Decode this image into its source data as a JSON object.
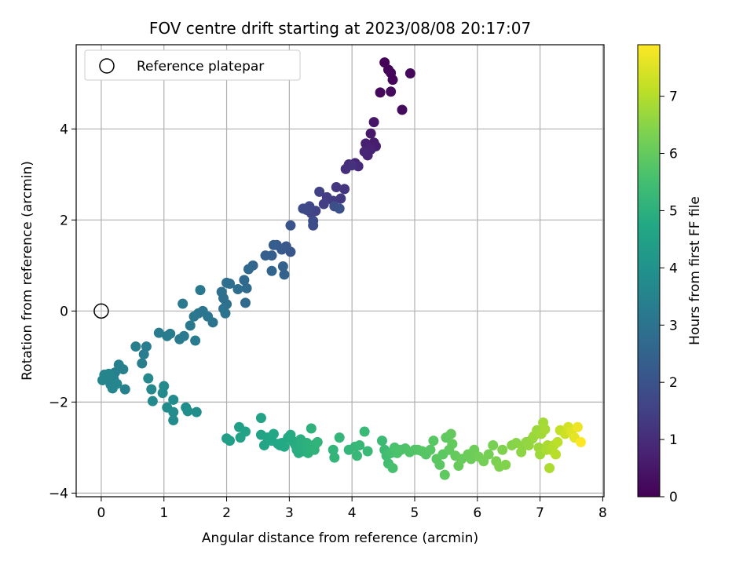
{
  "chart_data": {
    "type": "scatter",
    "title": "FOV centre drift starting at 2023/08/08 20:17:07",
    "xlabel": "Angular distance from reference (arcmin)",
    "ylabel": "Rotation from reference (arcmin)",
    "xlim": [
      -0.4,
      8.02
    ],
    "ylim": [
      -4.08,
      5.85
    ],
    "xticks": [
      0,
      1,
      2,
      3,
      4,
      5,
      6,
      7,
      8
    ],
    "yticks": [
      -4,
      -2,
      0,
      2,
      4
    ],
    "xtick_labels": [
      "0",
      "1",
      "2",
      "3",
      "4",
      "5",
      "6",
      "7",
      "8"
    ],
    "ytick_labels": [
      "−4",
      "−2",
      "0",
      "2",
      "4"
    ],
    "grid": true,
    "legend": {
      "placement": "top-left",
      "entries": [
        "Reference platepar"
      ]
    },
    "reference_point": {
      "x": 0,
      "y": 0
    },
    "colorbar": {
      "label": "Hours from first FF file",
      "colormap": "viridis",
      "range": [
        0,
        7.9
      ],
      "ticks": [
        0,
        1,
        2,
        3,
        4,
        5,
        6,
        7
      ],
      "tick_labels": [
        "0",
        "1",
        "2",
        "3",
        "4",
        "5",
        "6",
        "7"
      ]
    },
    "points": [
      [
        4.52,
        5.46,
        0.05
      ],
      [
        4.58,
        5.3,
        0.08
      ],
      [
        4.62,
        5.23,
        0.1
      ],
      [
        4.65,
        5.08,
        0.12
      ],
      [
        4.93,
        5.22,
        0.15
      ],
      [
        4.45,
        4.8,
        0.18
      ],
      [
        4.62,
        4.82,
        0.2
      ],
      [
        4.8,
        4.42,
        0.25
      ],
      [
        4.35,
        4.15,
        0.45
      ],
      [
        4.3,
        3.9,
        0.55
      ],
      [
        4.35,
        3.7,
        0.6
      ],
      [
        4.38,
        3.62,
        0.65
      ],
      [
        4.22,
        3.68,
        0.7
      ],
      [
        4.3,
        3.55,
        0.75
      ],
      [
        4.25,
        3.42,
        0.8
      ],
      [
        4.2,
        3.5,
        0.85
      ],
      [
        4.05,
        3.25,
        0.9
      ],
      [
        4.1,
        3.18,
        0.95
      ],
      [
        3.95,
        3.22,
        1.0
      ],
      [
        3.9,
        3.12,
        1.05
      ],
      [
        4.0,
        3.2,
        1.1
      ],
      [
        3.88,
        2.68,
        1.2
      ],
      [
        3.75,
        2.72,
        1.25
      ],
      [
        3.82,
        2.47,
        1.3
      ],
      [
        3.7,
        2.42,
        1.35
      ],
      [
        3.6,
        2.5,
        1.4
      ],
      [
        3.55,
        2.35,
        1.45
      ],
      [
        3.48,
        2.62,
        1.5
      ],
      [
        3.42,
        2.2,
        1.55
      ],
      [
        3.35,
        2.15,
        1.6
      ],
      [
        3.32,
        2.3,
        1.65
      ],
      [
        3.28,
        2.22,
        1.7
      ],
      [
        3.22,
        2.25,
        1.75
      ],
      [
        3.38,
        1.98,
        1.8
      ],
      [
        3.38,
        1.88,
        1.85
      ],
      [
        3.72,
        2.3,
        1.9
      ],
      [
        3.8,
        2.25,
        1.95
      ],
      [
        3.02,
        1.88,
        2.05
      ],
      [
        3.02,
        1.3,
        2.1
      ],
      [
        2.95,
        1.42,
        2.15
      ],
      [
        2.88,
        1.35,
        2.2
      ],
      [
        2.8,
        1.45,
        2.25
      ],
      [
        2.75,
        1.45,
        2.3
      ],
      [
        2.72,
        1.22,
        2.35
      ],
      [
        2.62,
        1.22,
        2.4
      ],
      [
        2.9,
        0.98,
        2.45
      ],
      [
        2.92,
        0.8,
        2.5
      ],
      [
        2.72,
        0.88,
        2.55
      ],
      [
        2.42,
        1.0,
        2.6
      ],
      [
        2.35,
        0.92,
        2.65
      ],
      [
        2.28,
        0.68,
        2.7
      ],
      [
        2.3,
        0.18,
        2.72
      ],
      [
        2.32,
        0.5,
        2.75
      ],
      [
        2.18,
        0.48,
        2.8
      ],
      [
        2.05,
        0.6,
        2.85
      ],
      [
        2.0,
        0.62,
        2.88
      ],
      [
        1.92,
        0.42,
        2.9
      ],
      [
        1.95,
        0.28,
        2.92
      ],
      [
        2.0,
        0.15,
        2.95
      ],
      [
        1.95,
        0.05,
        2.98
      ],
      [
        1.98,
        -0.05,
        3.0
      ],
      [
        1.78,
        -0.25,
        3.02
      ],
      [
        1.7,
        -0.12,
        3.05
      ],
      [
        1.62,
        0.0,
        3.08
      ],
      [
        1.55,
        -0.05,
        3.1
      ],
      [
        1.48,
        -0.12,
        3.12
      ],
      [
        1.42,
        -0.32,
        3.15
      ],
      [
        1.58,
        0.46,
        3.16
      ],
      [
        1.3,
        0.16,
        3.18
      ],
      [
        1.32,
        -0.55,
        3.2
      ],
      [
        1.25,
        -0.62,
        3.22
      ],
      [
        1.5,
        -0.65,
        3.24
      ],
      [
        1.1,
        -0.5,
        3.26
      ],
      [
        1.05,
        -0.55,
        3.28
      ],
      [
        0.92,
        -0.48,
        3.3
      ],
      [
        0.72,
        -0.78,
        3.32
      ],
      [
        0.68,
        -0.95,
        3.34
      ],
      [
        0.65,
        -1.15,
        3.36
      ],
      [
        0.55,
        -0.78,
        3.38
      ],
      [
        0.28,
        -1.18,
        3.4
      ],
      [
        0.22,
        -1.35,
        3.42
      ],
      [
        0.35,
        -1.28,
        3.44
      ],
      [
        0.38,
        -1.72,
        3.46
      ],
      [
        0.2,
        -1.5,
        3.48
      ],
      [
        0.15,
        -1.62,
        3.5
      ],
      [
        0.1,
        -1.45,
        3.52
      ],
      [
        0.05,
        -1.4,
        3.54
      ],
      [
        0.02,
        -1.52,
        3.56
      ],
      [
        0.12,
        -1.38,
        3.58
      ],
      [
        0.18,
        -1.7,
        3.6
      ],
      [
        0.25,
        -1.6,
        3.62
      ],
      [
        0.75,
        -1.48,
        3.66
      ],
      [
        0.8,
        -1.72,
        3.68
      ],
      [
        0.82,
        -1.98,
        3.7
      ],
      [
        1.0,
        -1.65,
        3.72
      ],
      [
        0.98,
        -1.8,
        3.74
      ],
      [
        1.05,
        -2.12,
        3.76
      ],
      [
        1.15,
        -1.95,
        3.78
      ],
      [
        1.15,
        -2.22,
        3.8
      ],
      [
        1.15,
        -2.4,
        3.82
      ],
      [
        1.35,
        -2.12,
        3.84
      ],
      [
        1.52,
        -2.22,
        3.86
      ],
      [
        1.38,
        -2.2,
        3.88
      ],
      [
        2.0,
        -2.8,
        4.4
      ],
      [
        2.05,
        -2.85,
        4.45
      ],
      [
        2.2,
        -2.55,
        4.48
      ],
      [
        2.22,
        -2.78,
        4.5
      ],
      [
        2.3,
        -2.65,
        4.52
      ],
      [
        2.55,
        -2.35,
        4.55
      ],
      [
        2.55,
        -2.72,
        4.58
      ],
      [
        2.6,
        -2.95,
        4.6
      ],
      [
        2.65,
        -2.78,
        4.62
      ],
      [
        2.68,
        -2.8,
        4.64
      ],
      [
        2.72,
        -2.85,
        4.66
      ],
      [
        2.75,
        -2.7,
        4.68
      ],
      [
        2.82,
        -2.92,
        4.7
      ],
      [
        2.85,
        -2.95,
        4.72
      ],
      [
        2.88,
        -2.9,
        4.74
      ],
      [
        2.92,
        -2.98,
        4.76
      ],
      [
        2.98,
        -2.78,
        4.78
      ],
      [
        3.02,
        -2.72,
        4.8
      ],
      [
        3.05,
        -2.85,
        4.82
      ],
      [
        3.08,
        -2.9,
        4.84
      ],
      [
        3.1,
        -2.95,
        4.86
      ],
      [
        3.12,
        -3.05,
        4.88
      ],
      [
        3.15,
        -3.12,
        4.9
      ],
      [
        3.18,
        -2.82,
        4.92
      ],
      [
        3.2,
        -2.95,
        4.94
      ],
      [
        3.22,
        -3.08,
        4.96
      ],
      [
        3.25,
        -3.0,
        4.98
      ],
      [
        3.28,
        -2.9,
        5.0
      ],
      [
        3.3,
        -3.12,
        5.02
      ],
      [
        3.35,
        -2.98,
        5.04
      ],
      [
        3.35,
        -2.58,
        5.06
      ],
      [
        3.4,
        -3.05,
        5.08
      ],
      [
        3.42,
        -2.92,
        5.1
      ],
      [
        3.45,
        -2.88,
        5.12
      ],
      [
        3.7,
        -3.05,
        5.14
      ],
      [
        3.72,
        -3.22,
        5.16
      ],
      [
        3.8,
        -2.78,
        5.18
      ],
      [
        3.95,
        -3.05,
        5.2
      ],
      [
        4.05,
        -2.98,
        5.22
      ],
      [
        4.08,
        -3.18,
        5.24
      ],
      [
        4.12,
        -2.95,
        5.26
      ],
      [
        4.2,
        -2.65,
        5.28
      ],
      [
        4.25,
        -3.08,
        5.3
      ],
      [
        4.48,
        -2.85,
        5.35
      ],
      [
        4.52,
        -3.05,
        5.4
      ],
      [
        4.55,
        -3.18,
        5.45
      ],
      [
        4.58,
        -3.35,
        5.5
      ],
      [
        4.62,
        -3.12,
        5.55
      ],
      [
        4.65,
        -3.45,
        5.58
      ],
      [
        4.68,
        -3.0,
        5.6
      ],
      [
        4.72,
        -3.12,
        5.62
      ],
      [
        4.78,
        -3.05,
        5.65
      ],
      [
        4.85,
        -3.02,
        5.68
      ],
      [
        4.92,
        -3.1,
        5.7
      ],
      [
        5.0,
        -3.05,
        5.72
      ],
      [
        5.05,
        -3.05,
        5.75
      ],
      [
        5.12,
        -3.08,
        5.78
      ],
      [
        5.18,
        -3.15,
        5.8
      ],
      [
        5.25,
        -3.05,
        5.82
      ],
      [
        5.3,
        -2.85,
        5.84
      ],
      [
        5.35,
        -3.25,
        5.86
      ],
      [
        5.4,
        -3.38,
        5.88
      ],
      [
        5.45,
        -3.15,
        5.9
      ],
      [
        5.48,
        -3.6,
        5.92
      ],
      [
        5.5,
        -2.78,
        5.94
      ],
      [
        5.55,
        -3.05,
        5.96
      ],
      [
        5.58,
        -2.7,
        5.98
      ],
      [
        5.6,
        -2.92,
        6.0
      ],
      [
        5.65,
        -3.18,
        6.02
      ],
      [
        5.7,
        -3.4,
        6.04
      ],
      [
        5.75,
        -3.25,
        6.06
      ],
      [
        5.85,
        -3.15,
        6.1
      ],
      [
        5.9,
        -3.25,
        6.12
      ],
      [
        5.95,
        -3.05,
        6.15
      ],
      [
        6.02,
        -3.2,
        6.2
      ],
      [
        6.1,
        -3.3,
        6.22
      ],
      [
        6.18,
        -3.15,
        6.25
      ],
      [
        6.25,
        -2.95,
        6.28
      ],
      [
        6.3,
        -3.3,
        6.32
      ],
      [
        6.35,
        -3.42,
        6.35
      ],
      [
        6.4,
        -3.05,
        6.38
      ],
      [
        6.45,
        -3.38,
        6.4
      ],
      [
        6.55,
        -2.95,
        6.45
      ],
      [
        6.62,
        -2.9,
        6.48
      ],
      [
        6.7,
        -3.1,
        6.52
      ],
      [
        6.72,
        -2.98,
        6.55
      ],
      [
        6.78,
        -2.88,
        6.58
      ],
      [
        6.82,
        -2.95,
        6.62
      ],
      [
        6.88,
        -2.8,
        6.65
      ],
      [
        6.9,
        -2.75,
        6.68
      ],
      [
        6.95,
        -2.62,
        6.7
      ],
      [
        6.98,
        -3.0,
        6.72
      ],
      [
        7.0,
        -3.15,
        6.75
      ],
      [
        7.02,
        -2.7,
        6.78
      ],
      [
        7.05,
        -2.45,
        6.82
      ],
      [
        7.08,
        -2.6,
        6.85
      ],
      [
        7.1,
        -3.05,
        6.88
      ],
      [
        7.12,
        -2.95,
        6.9
      ],
      [
        7.15,
        -3.45,
        6.92
      ],
      [
        7.18,
        -3.05,
        6.95
      ],
      [
        7.22,
        -2.95,
        7.0
      ],
      [
        7.25,
        -3.15,
        7.05
      ],
      [
        7.28,
        -2.88,
        7.1
      ],
      [
        7.32,
        -2.62,
        7.2
      ],
      [
        7.4,
        -2.7,
        7.3
      ],
      [
        7.45,
        -2.55,
        7.4
      ],
      [
        7.5,
        -2.65,
        7.5
      ],
      [
        7.55,
        -2.78,
        7.6
      ],
      [
        7.6,
        -2.55,
        7.7
      ],
      [
        7.65,
        -2.88,
        7.9
      ]
    ]
  }
}
